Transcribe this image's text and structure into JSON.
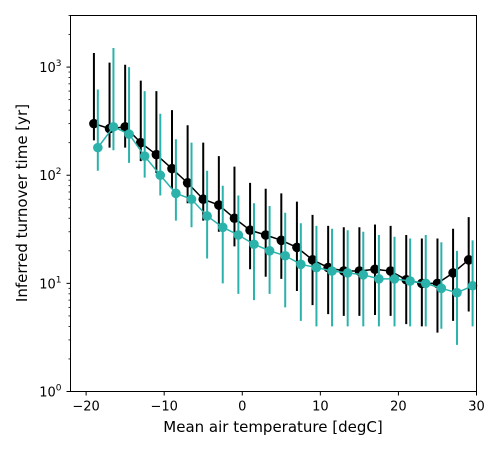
{
  "chart_data": {
    "type": "scatter",
    "title": "",
    "xlabel": "Mean air temperature [degC]",
    "ylabel": "Inferred turnover time [yr]",
    "xlim": [
      -22,
      30
    ],
    "ylim": [
      1,
      3000
    ],
    "yscale": "log",
    "grid": false,
    "legend": "none",
    "x_ticks": [
      {
        "value": -20,
        "label": "−20"
      },
      {
        "value": -10,
        "label": "−10"
      },
      {
        "value": 0,
        "label": "0"
      },
      {
        "value": 10,
        "label": "10"
      },
      {
        "value": 20,
        "label": "20"
      },
      {
        "value": 30,
        "label": "30"
      }
    ],
    "y_ticks": [
      {
        "value": 1,
        "base": "10",
        "exp": "0"
      },
      {
        "value": 10,
        "base": "10",
        "exp": "1"
      },
      {
        "value": 100,
        "base": "10",
        "exp": "2"
      },
      {
        "value": 1000,
        "base": "10",
        "exp": "3"
      }
    ],
    "series": [
      {
        "color": "#000000",
        "x": [
          -19,
          -17,
          -15,
          -13,
          -11,
          -9,
          -7,
          -5,
          -3,
          -1,
          1,
          3,
          5,
          7,
          9,
          11,
          13,
          15,
          17,
          19,
          21,
          23,
          25,
          27,
          29
        ],
        "y": [
          300,
          270,
          280,
          200,
          155,
          115,
          85,
          60,
          53,
          40,
          31,
          28,
          25,
          21.5,
          16.5,
          14,
          13,
          13,
          13.5,
          13,
          10.8,
          10,
          10,
          12.5,
          16.5
        ],
        "err_low": [
          210,
          180,
          180,
          135,
          105,
          75,
          55,
          38,
          30,
          22,
          13.5,
          11.5,
          11,
          8.5,
          6.3,
          5.2,
          5,
          5,
          5.1,
          5,
          4.2,
          4,
          3.5,
          4.5,
          5.5
        ],
        "err_high": [
          1350,
          1100,
          1050,
          750,
          600,
          400,
          290,
          200,
          150,
          120,
          85,
          75,
          68,
          57,
          43,
          34,
          33,
          33,
          35,
          34,
          28,
          26,
          26,
          32,
          41
        ]
      },
      {
        "color": "#2bb3ab",
        "x": [
          -18.5,
          -16.5,
          -14.5,
          -12.5,
          -10.5,
          -8.5,
          -6.5,
          -4.5,
          -2.5,
          -0.5,
          1.5,
          3.5,
          5.5,
          7.5,
          9.5,
          11.5,
          13.5,
          15.5,
          17.5,
          19.5,
          21.5,
          23.5,
          25.5,
          27.5,
          29.5
        ],
        "y": [
          180,
          280,
          240,
          150,
          100,
          68,
          60,
          42,
          33,
          28,
          23,
          20,
          18,
          15,
          14,
          13,
          12.5,
          12,
          11,
          11,
          10.5,
          10,
          9,
          8.2,
          9.5
        ],
        "err_low": [
          110,
          170,
          130,
          95,
          65,
          38,
          33,
          17,
          10,
          8,
          7,
          8,
          6,
          4.5,
          4,
          4,
          4,
          4,
          4,
          4,
          4,
          4,
          3.8,
          2.7,
          4
        ],
        "err_high": [
          620,
          1500,
          1000,
          600,
          370,
          215,
          200,
          110,
          80,
          65,
          55,
          52,
          45,
          36,
          34,
          32,
          31,
          30,
          28,
          27,
          26,
          28,
          24,
          20,
          25
        ]
      }
    ]
  }
}
